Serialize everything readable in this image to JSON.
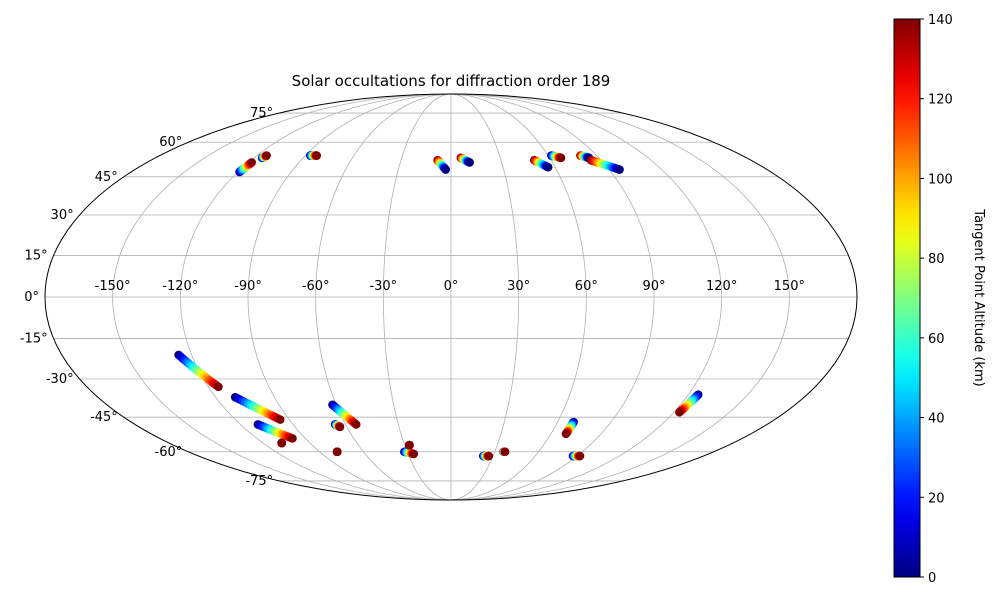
{
  "chart_data": {
    "type": "scatter",
    "projection": "mollweide",
    "title": "Solar occultations for diffraction order 189",
    "x_ticks": [
      "-150°",
      "-120°",
      "-90°",
      "-60°",
      "-30°",
      "0°",
      "30°",
      "60°",
      "90°",
      "120°",
      "150°"
    ],
    "y_ticks": [
      "-75°",
      "-60°",
      "-45°",
      "-30°",
      "-15°",
      "0°",
      "15°",
      "30°",
      "45°",
      "60°",
      "75°"
    ],
    "x_tick_values": [
      -150,
      -120,
      -90,
      -60,
      -30,
      0,
      30,
      60,
      90,
      120,
      150
    ],
    "y_tick_values": [
      -75,
      -60,
      -45,
      -30,
      -15,
      0,
      15,
      30,
      45,
      60,
      75
    ],
    "grid": true,
    "xlim": [
      -180,
      180
    ],
    "ylim": [
      -90,
      90
    ],
    "colorbar": {
      "label": "Tangent Point Altitude (km)",
      "colormap": "jet",
      "range": [
        0,
        140
      ],
      "ticks": [
        "0",
        "20",
        "40",
        "60",
        "80",
        "100",
        "120",
        "140"
      ],
      "tick_values": [
        0,
        20,
        40,
        60,
        80,
        100,
        120,
        140
      ]
    },
    "series": [
      {
        "lon": [
          -119,
          -118
        ],
        "lat": [
          47,
          51
        ],
        "alt": [
          0,
          140
        ]
      },
      {
        "lon": [
          -115,
          -114
        ],
        "lat": [
          53,
          54
        ],
        "alt": [
          0,
          140
        ]
      },
      {
        "lon": [
          -87,
          -83
        ],
        "lat": [
          54,
          54
        ],
        "alt": [
          0,
          140
        ]
      },
      {
        "lon": [
          -8,
          -3
        ],
        "lat": [
          52,
          48
        ],
        "alt": [
          140,
          0
        ]
      },
      {
        "lon": [
          6,
          11
        ],
        "lat": [
          53,
          51
        ],
        "alt": [
          140,
          0
        ]
      },
      {
        "lon": [
          50,
          56
        ],
        "lat": [
          52,
          49
        ],
        "alt": [
          140,
          0
        ]
      },
      {
        "lon": [
          62,
          67
        ],
        "lat": [
          54,
          53
        ],
        "alt": [
          0,
          140
        ]
      },
      {
        "lon": [
          80,
          84
        ],
        "lat": [
          54,
          53
        ],
        "alt": [
          140,
          0
        ]
      },
      {
        "lon": [
          84,
          96
        ],
        "lat": [
          52,
          48
        ],
        "alt": [
          140,
          0
        ]
      },
      {
        "lon": [
          -126,
          -115
        ],
        "lat": [
          -21,
          -33
        ],
        "alt": [
          0,
          140
        ]
      },
      {
        "lon": [
          -110,
          -95
        ],
        "lat": [
          -37,
          -46
        ],
        "alt": [
          0,
          140
        ]
      },
      {
        "lon": [
          -110,
          -98
        ],
        "lat": [
          -48,
          -54
        ],
        "alt": [
          0,
          140
        ]
      },
      {
        "lon": [
          -108,
          -108
        ],
        "lat": [
          -56,
          -56
        ],
        "alt": [
          140,
          140
        ]
      },
      {
        "lon": [
          -66,
          -64
        ],
        "lat": [
          -48,
          -49
        ],
        "alt": [
          0,
          140
        ]
      },
      {
        "lon": [
          -62,
          -54
        ],
        "lat": [
          -40,
          -48
        ],
        "alt": [
          0,
          140
        ]
      },
      {
        "lon": [
          -78,
          -78
        ],
        "lat": [
          -60,
          -60
        ],
        "alt": [
          140,
          140
        ]
      },
      {
        "lon": [
          -32,
          -26
        ],
        "lat": [
          -60,
          -61
        ],
        "alt": [
          0,
          140
        ]
      },
      {
        "lon": [
          -27,
          -27
        ],
        "lat": [
          -57,
          -57
        ],
        "alt": [
          140,
          140
        ]
      },
      {
        "lon": [
          23,
          27
        ],
        "lat": [
          -62,
          -62
        ],
        "alt": [
          0,
          140
        ]
      },
      {
        "lon": [
          36,
          37
        ],
        "lat": [
          -60,
          -60
        ],
        "alt": [
          0,
          140
        ]
      },
      {
        "lon": [
          87,
          92
        ],
        "lat": [
          -62,
          -62
        ],
        "alt": [
          0,
          140
        ]
      },
      {
        "lon": [
          69,
          69
        ],
        "lat": [
          -47,
          -52
        ],
        "alt": [
          0,
          140
        ]
      },
      {
        "lon": [
          125,
          123
        ],
        "lat": [
          -36,
          -43
        ],
        "alt": [
          0,
          140
        ]
      }
    ]
  }
}
